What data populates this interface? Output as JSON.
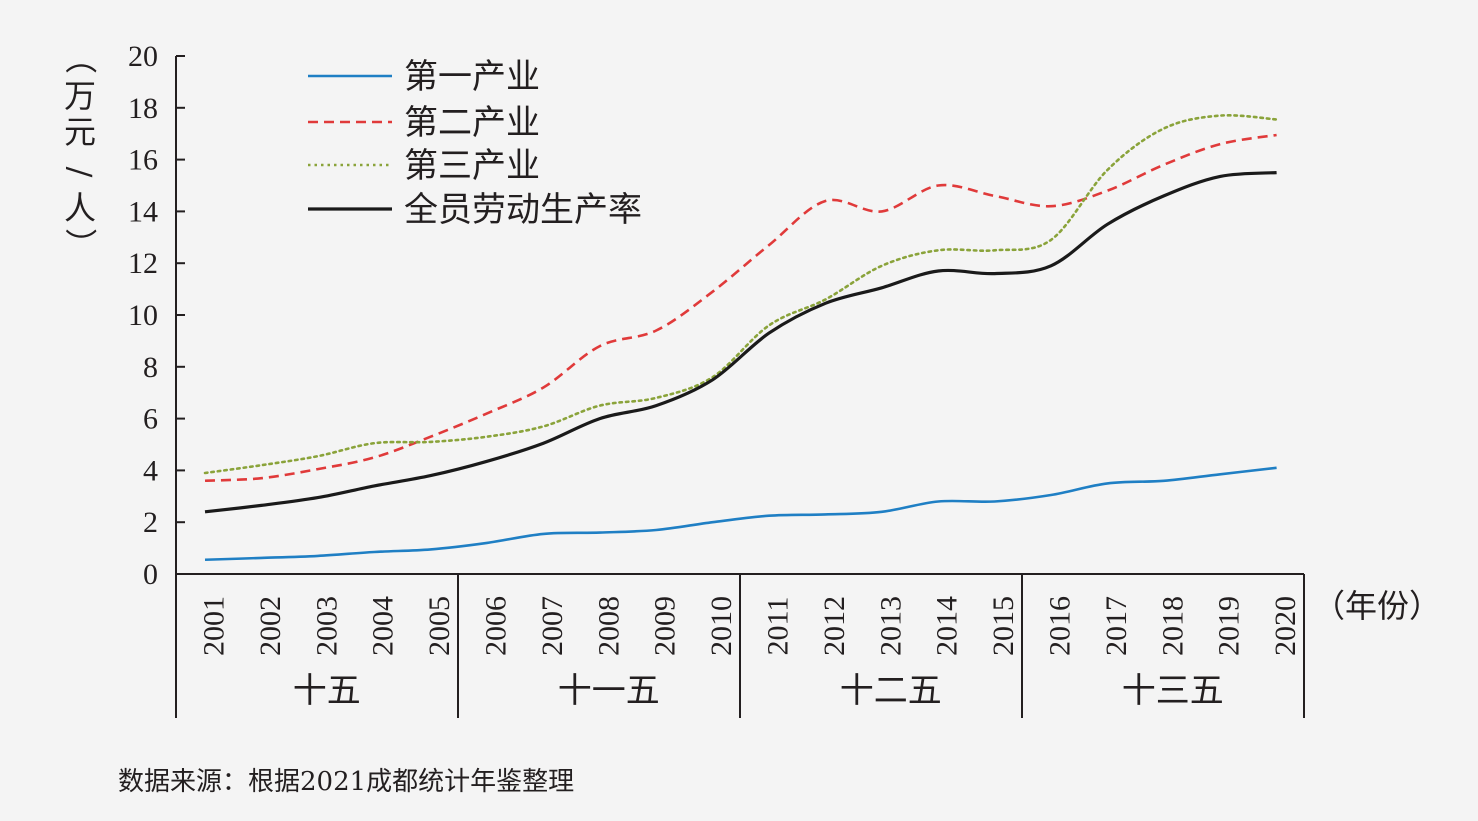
{
  "chart_data": {
    "type": "line",
    "ylabel": "（万元/人）",
    "xlabel": "（年份）",
    "ylim": [
      0,
      20
    ],
    "yticks": [
      0,
      2,
      4,
      6,
      8,
      10,
      12,
      14,
      16,
      18,
      20
    ],
    "x": [
      "2001",
      "2002",
      "2003",
      "2004",
      "2005",
      "2006",
      "2007",
      "2008",
      "2009",
      "2010",
      "2011",
      "2012",
      "2013",
      "2014",
      "2015",
      "2016",
      "2017",
      "2018",
      "2019",
      "2020"
    ],
    "groups": [
      {
        "label": "十五",
        "years": [
          "2001",
          "2005"
        ]
      },
      {
        "label": "十一五",
        "years": [
          "2006",
          "2010"
        ]
      },
      {
        "label": "十二五",
        "years": [
          "2011",
          "2015"
        ]
      },
      {
        "label": "十三五",
        "years": [
          "2016",
          "2020"
        ]
      }
    ],
    "series": [
      {
        "name": "第一产业",
        "style": "solid",
        "color": "#1f7fc4",
        "values": [
          0.55,
          0.62,
          0.7,
          0.85,
          0.95,
          1.2,
          1.55,
          1.6,
          1.7,
          2.0,
          2.25,
          2.3,
          2.4,
          2.8,
          2.8,
          3.05,
          3.5,
          3.6,
          3.85,
          4.1
        ]
      },
      {
        "name": "第二产业",
        "style": "dashed",
        "color": "#e03a3a",
        "values": [
          3.6,
          3.7,
          4.05,
          4.5,
          5.3,
          6.2,
          7.2,
          8.8,
          9.4,
          10.9,
          12.7,
          14.4,
          14.0,
          15.0,
          14.6,
          14.2,
          14.8,
          15.8,
          16.6,
          16.95
        ]
      },
      {
        "name": "第三产业",
        "style": "dotted",
        "color": "#8aa33a",
        "values": [
          3.9,
          4.2,
          4.55,
          5.05,
          5.1,
          5.3,
          5.7,
          6.5,
          6.8,
          7.6,
          9.6,
          10.6,
          11.9,
          12.5,
          12.5,
          12.9,
          15.6,
          17.2,
          17.7,
          17.55
        ]
      },
      {
        "name": "全员劳动生产率",
        "style": "solid",
        "color": "#1a1a1a",
        "values": [
          2.4,
          2.65,
          2.95,
          3.4,
          3.8,
          4.35,
          5.05,
          6.0,
          6.5,
          7.5,
          9.3,
          10.45,
          11.05,
          11.7,
          11.6,
          11.9,
          13.5,
          14.6,
          15.35,
          15.5
        ]
      }
    ]
  },
  "source": "数据来源：根据2021成都统计年鉴整理"
}
